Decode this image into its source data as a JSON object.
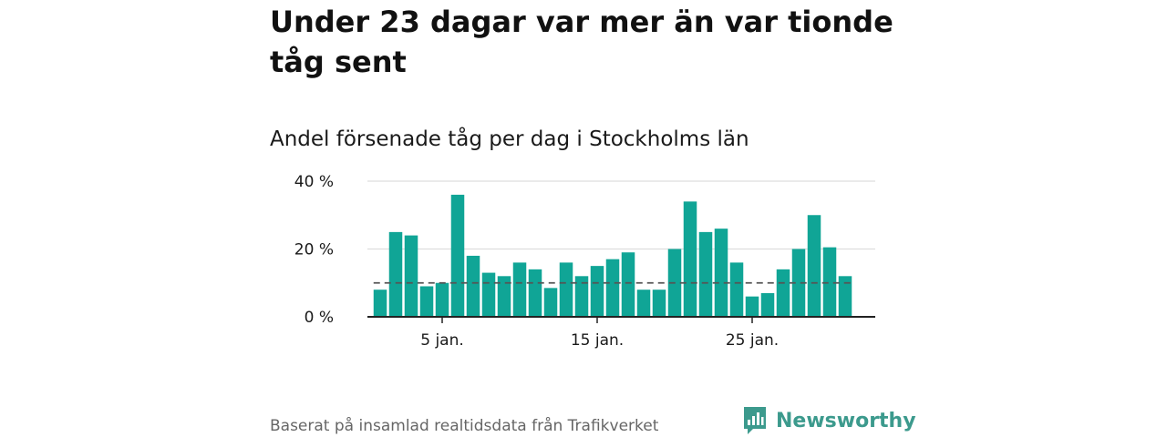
{
  "header": {
    "title": "Under 23 dagar var mer än var tionde tåg sent",
    "subtitle": "Andel försenade tåg per dag i Stockholms län"
  },
  "footer": {
    "source": "Baserat på insamlad realtidsdata från Trafikverket",
    "brand": "Newsworthy"
  },
  "colors": {
    "bar": "#10a596",
    "reference_line": "#555555",
    "grid": "#dddddd",
    "axis": "#222222",
    "brand": "#3c9a8d"
  },
  "chart_data": {
    "type": "bar",
    "title": "Andel försenade tåg per dag i Stockholms län",
    "xlabel": "",
    "ylabel": "",
    "x": [
      1,
      2,
      3,
      4,
      5,
      6,
      7,
      8,
      9,
      10,
      11,
      12,
      13,
      14,
      15,
      16,
      17,
      18,
      19,
      20,
      21,
      22,
      23,
      24,
      25,
      26,
      27,
      28,
      29,
      30,
      31
    ],
    "values": [
      8,
      25,
      24,
      9,
      10,
      36,
      18,
      13,
      12,
      16,
      14,
      8.5,
      16,
      12,
      15,
      17,
      19,
      8,
      8,
      20,
      34,
      25,
      26,
      16,
      6,
      7,
      14,
      20,
      30,
      20.5,
      12
    ],
    "unit": "%",
    "ylim": [
      0,
      40
    ],
    "y_ticks": [
      0,
      20,
      40
    ],
    "y_tick_labels": [
      "0 %",
      "20 %",
      "40 %"
    ],
    "x_ticks": [
      5,
      15,
      25
    ],
    "x_tick_labels": [
      "5 jan.",
      "15 jan.",
      "25 jan."
    ],
    "reference_line": {
      "value": 10,
      "style": "dashed"
    },
    "grid": true,
    "legend": "none"
  }
}
